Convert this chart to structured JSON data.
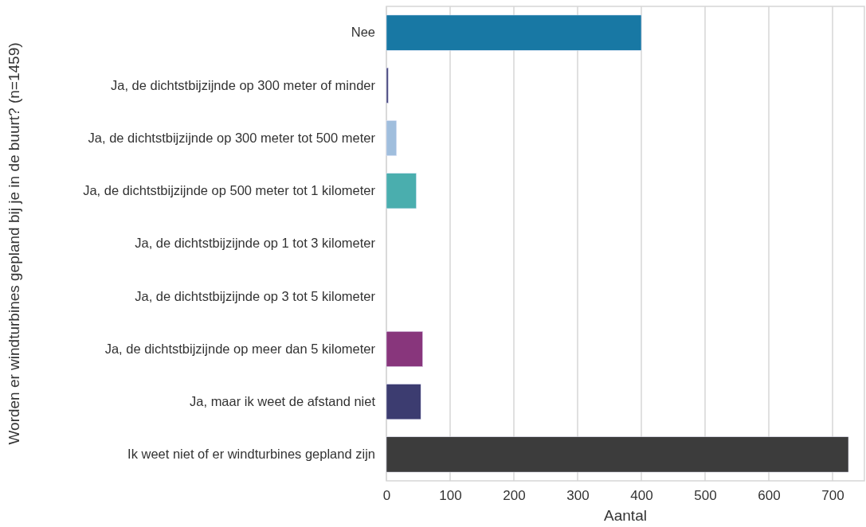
{
  "chart_data": {
    "type": "bar",
    "orientation": "horizontal",
    "xlabel": "Aantal",
    "ylabel": "Worden er windturbines gepland bij je in de buurt? (n=1459)",
    "categories": [
      "Nee",
      "Ja, de dichtstbijzijnde op 300 meter of minder",
      "Ja, de dichtstbijzijnde op 300 meter tot 500 meter",
      "Ja, de dichtstbijzijnde op 500 meter tot 1 kilometer",
      "Ja, de dichtstbijzijnde op 1 tot 3 kilometer",
      "Ja, de dichtstbijzijnde op 3 tot 5 kilometer",
      "Ja, de dichtstbijzijnde op meer dan 5 kilometer",
      "Ja, maar ik weet de afstand niet",
      "Ik weet niet of er windturbines gepland zijn"
    ],
    "values": [
      400,
      3,
      16,
      47,
      0,
      0,
      57,
      54,
      725
    ],
    "colors": [
      "#1878a4",
      "#4a4a80",
      "#a0bedd",
      "#4aaeae",
      "#6a8a5a",
      "#d08a4a",
      "#88367c",
      "#3c3c70",
      "#3c3c3c"
    ],
    "xlim": [
      0,
      750
    ],
    "xticks": [
      0,
      100,
      200,
      300,
      400,
      500,
      600,
      700
    ],
    "grid": "x"
  }
}
